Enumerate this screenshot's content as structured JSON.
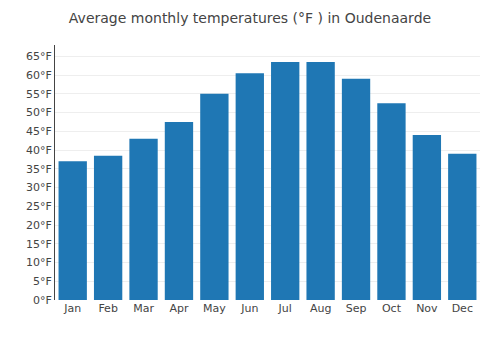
{
  "chart_data": {
    "type": "bar",
    "title": "Average monthly temperatures (°F ) in Oudenaarde",
    "categories": [
      "Jan",
      "Feb",
      "Mar",
      "Apr",
      "May",
      "Jun",
      "Jul",
      "Aug",
      "Sep",
      "Oct",
      "Nov",
      "Dec"
    ],
    "values": [
      37,
      38.5,
      43,
      47.5,
      55,
      60.5,
      63.5,
      63.5,
      59,
      52.5,
      44,
      39
    ],
    "ylim": [
      0,
      68
    ],
    "yticks": [
      {
        "value": 0,
        "label": "0°F"
      },
      {
        "value": 5,
        "label": "5°F"
      },
      {
        "value": 10,
        "label": "10°F"
      },
      {
        "value": 15,
        "label": "15°F"
      },
      {
        "value": 20,
        "label": "20°F"
      },
      {
        "value": 25,
        "label": "25°F"
      },
      {
        "value": 30,
        "label": "30°F"
      },
      {
        "value": 35,
        "label": "35°F"
      },
      {
        "value": 40,
        "label": "40°F"
      },
      {
        "value": 45,
        "label": "45°F"
      },
      {
        "value": 50,
        "label": "50°F"
      },
      {
        "value": 55,
        "label": "55°F"
      },
      {
        "value": 60,
        "label": "60°F"
      },
      {
        "value": 65,
        "label": "65°F"
      }
    ],
    "grid": true
  }
}
